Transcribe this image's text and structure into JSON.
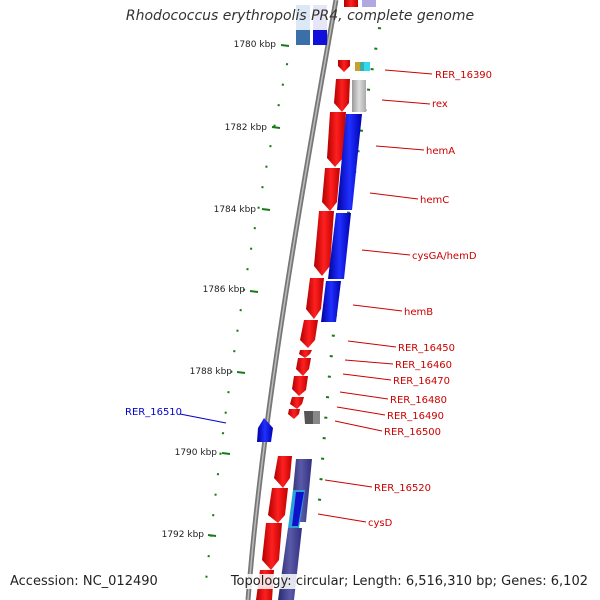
{
  "title": "Rhodococcus erythropolis PR4, complete genome",
  "footer": {
    "accession_label": "Accession:",
    "accession": "NC_012490",
    "topology_label": "Topology:",
    "topology": "circular",
    "length_label": "Length:",
    "length": "6,516,310 bp",
    "genes_label": "Genes:",
    "genes": "6,102"
  },
  "kbp_ticks": [
    "1780 kbp",
    "1782 kbp",
    "1784 kbp",
    "1786 kbp",
    "1788 kbp",
    "1790 kbp",
    "1792 kbp"
  ],
  "gene_labels": [
    {
      "text": "RER_16390",
      "color": "#cc0000"
    },
    {
      "text": "rex",
      "color": "#cc0000"
    },
    {
      "text": "hemA",
      "color": "#cc0000"
    },
    {
      "text": "hemC",
      "color": "#cc0000"
    },
    {
      "text": "cysGA/hemD",
      "color": "#cc0000"
    },
    {
      "text": "hemB",
      "color": "#cc0000"
    },
    {
      "text": "RER_16450",
      "color": "#cc0000"
    },
    {
      "text": "RER_16460",
      "color": "#cc0000"
    },
    {
      "text": "RER_16470",
      "color": "#cc0000"
    },
    {
      "text": "RER_16480",
      "color": "#cc0000"
    },
    {
      "text": "RER_16490",
      "color": "#cc0000"
    },
    {
      "text": "RER_16500",
      "color": "#cc0000"
    },
    {
      "text": "RER_16510",
      "color": "#0000cc"
    },
    {
      "text": "RER_16520",
      "color": "#cc0000"
    },
    {
      "text": "cysD",
      "color": "#cc0000"
    }
  ],
  "colors": {
    "cds_forward": "#ff0000",
    "gene_track": "#0000ff",
    "backbone": "#888888",
    "tick": "#1a7a1a"
  }
}
